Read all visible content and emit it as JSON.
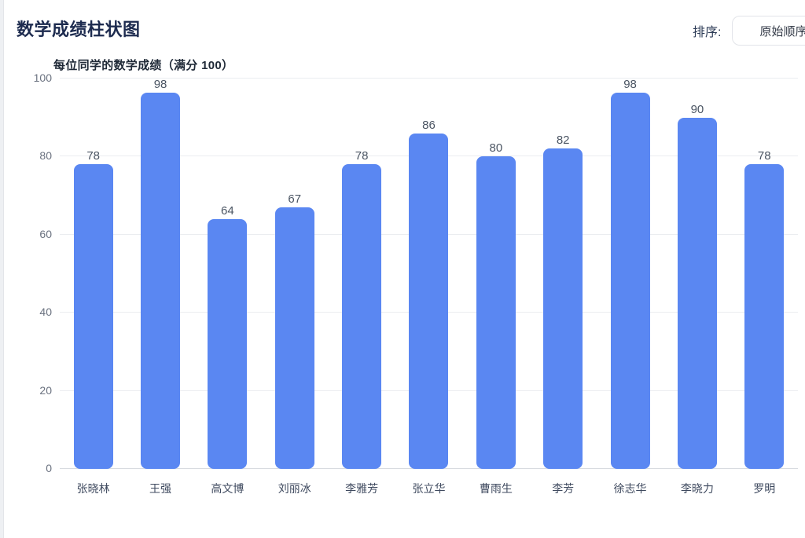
{
  "page": {
    "title": "数学成绩柱状图"
  },
  "sort": {
    "label": "排序:",
    "selected_option": "原始顺序"
  },
  "chart_data": {
    "type": "bar",
    "title": "每位同学的数学成绩（满分 100）",
    "categories": [
      "张晓林",
      "王强",
      "高文博",
      "刘丽冰",
      "李雅芳",
      "张立华",
      "曹雨生",
      "李芳",
      "徐志华",
      "李晓力",
      "罗明"
    ],
    "values": [
      78,
      98,
      64,
      67,
      78,
      86,
      80,
      82,
      98,
      90,
      78
    ],
    "xlabel": "",
    "ylabel": "",
    "ylim": [
      0,
      100
    ],
    "yticks": [
      0,
      20,
      40,
      60,
      80,
      100
    ],
    "grid": true,
    "value_labels": true,
    "bar_color": "#5a87f2",
    "legend": "none"
  }
}
